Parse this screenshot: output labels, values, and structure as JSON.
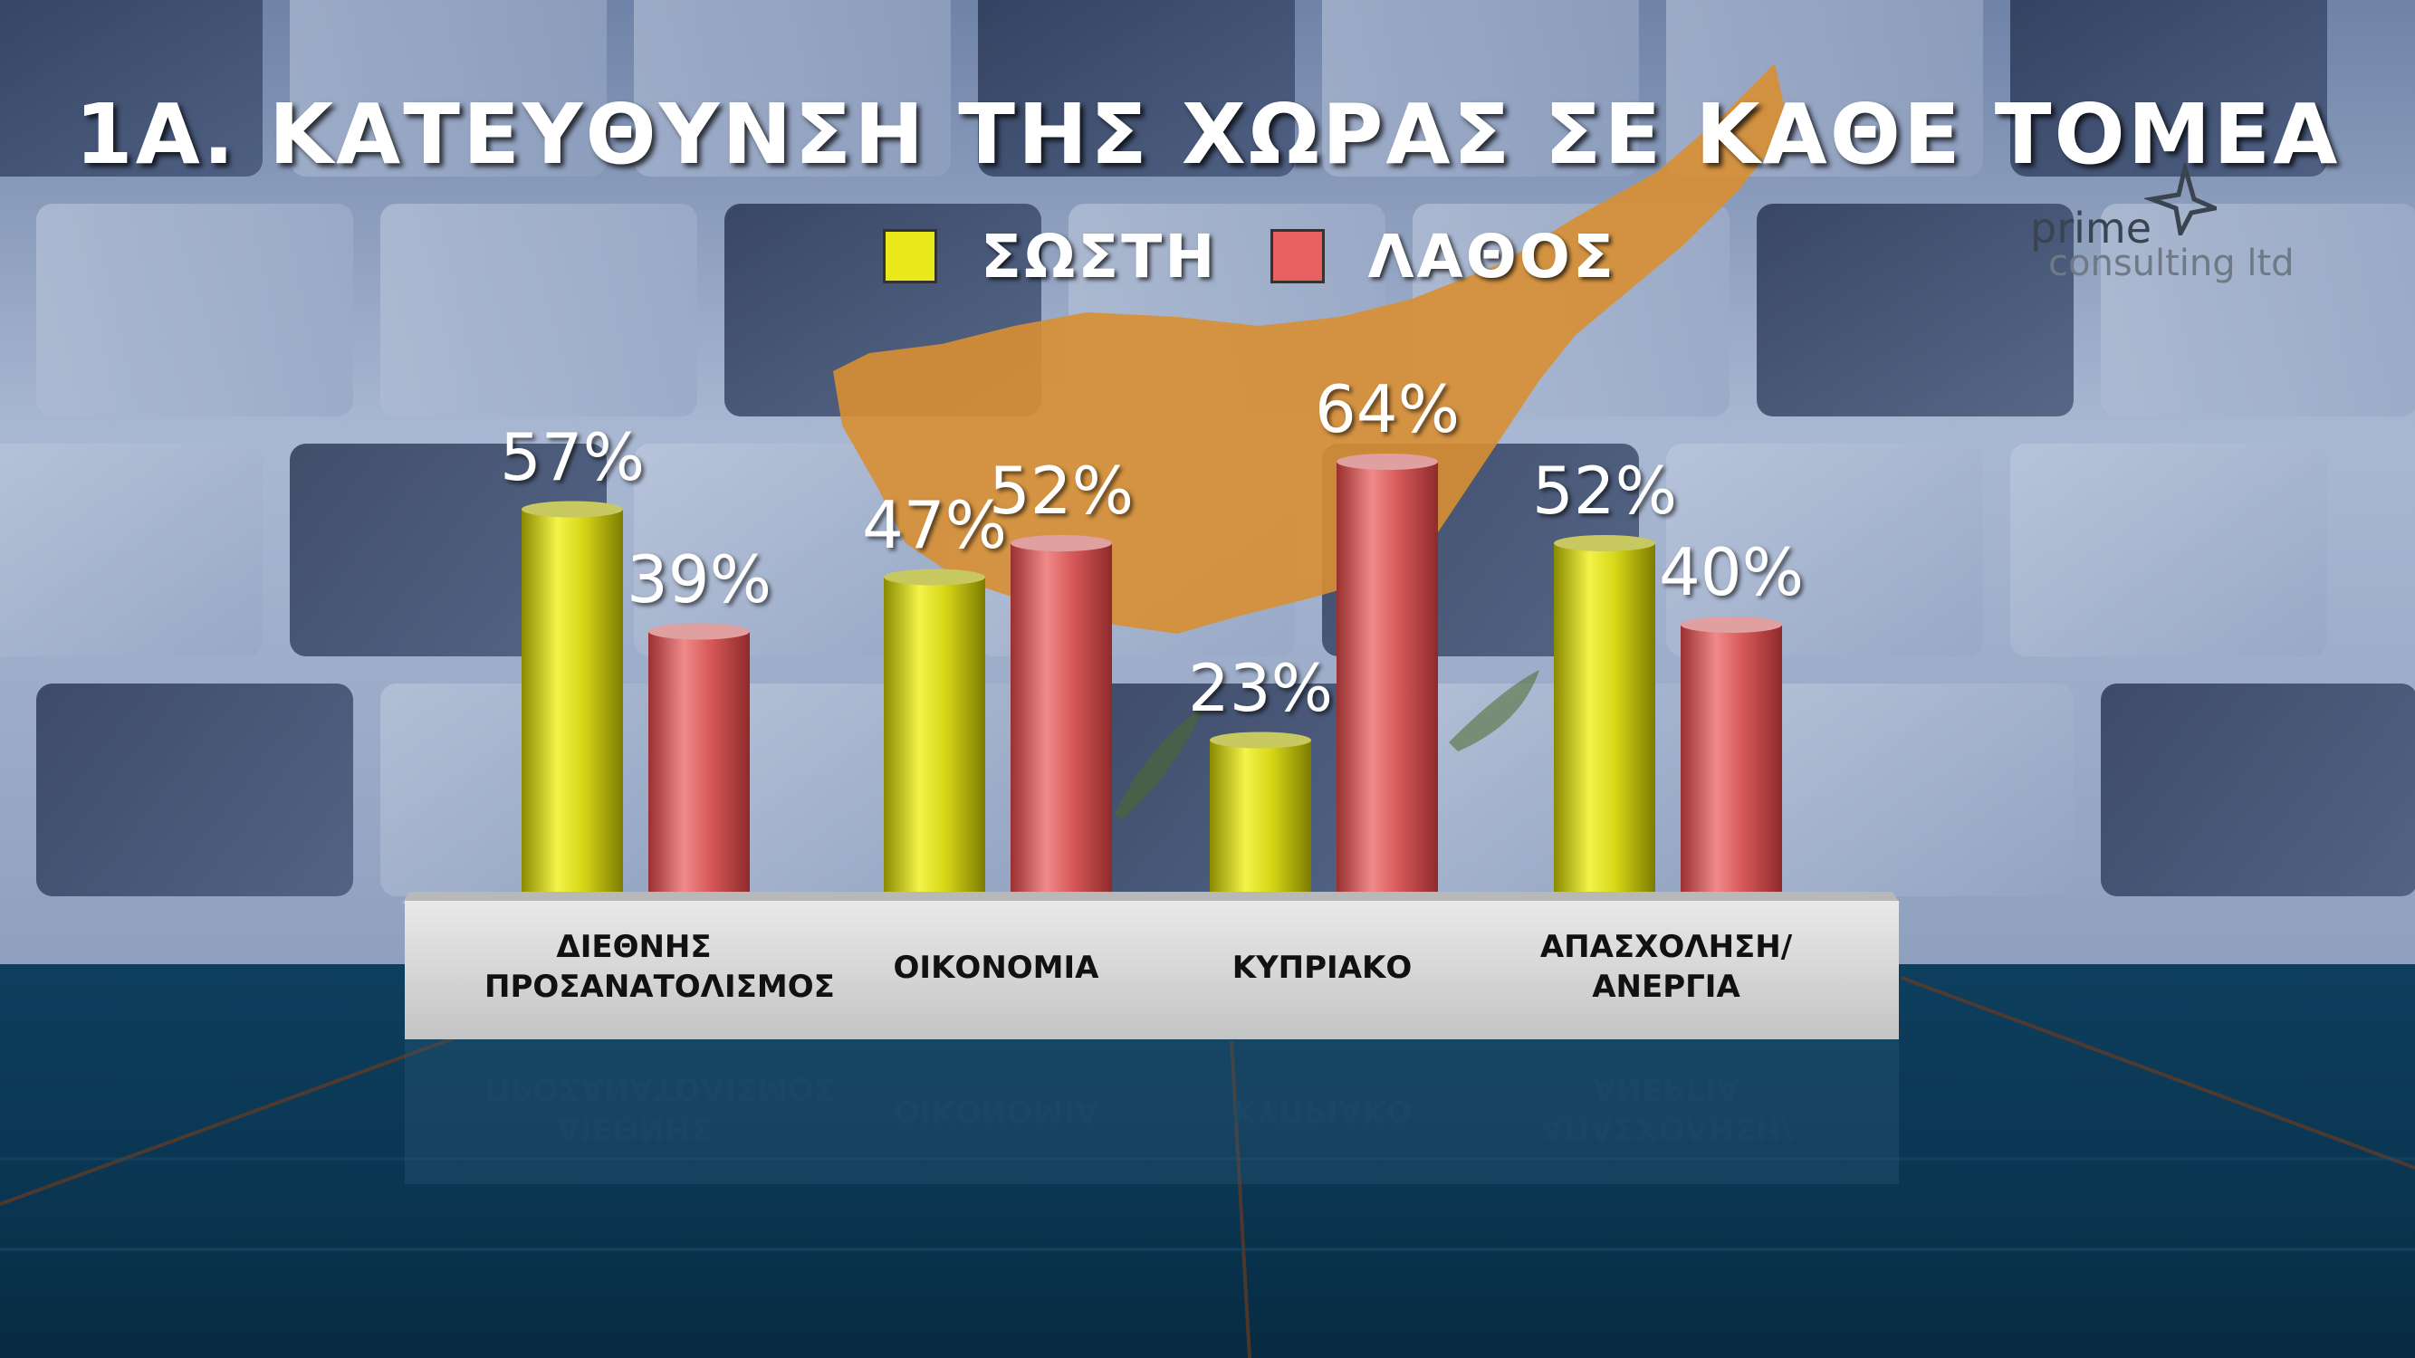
{
  "title": "1Α. ΚΑΤΕΥΘΥΝΣΗ ΤΗΣ ΧΩΡΑΣ ΣΕ ΚΑΘΕ ΤΟΜΕΑ",
  "legend": [
    {
      "label": "ΣΩΣΤΗ",
      "color": "#e8e81a"
    },
    {
      "label": "ΛΑΘΟΣ",
      "color": "#e86060"
    }
  ],
  "logo": {
    "line1": "prime",
    "line2": "consulting ltd",
    "icon": "star-compass-icon"
  },
  "colors": {
    "correct": "#e2e21c",
    "wrong": "#df5b5b",
    "base": "#d6d6d6"
  },
  "chart_data": {
    "type": "bar",
    "title": "1Α. ΚΑΤΕΥΘΥΝΣΗ ΤΗΣ ΧΩΡΑΣ ΣΕ ΚΑΘΕ ΤΟΜΕΑ",
    "categories": [
      [
        "ΔΙΕΘΝΗΣ",
        "ΠΡΟΣΑΝΑΤΟΛΙΣΜΟΣ"
      ],
      [
        "ΟΙΚΟΝΟΜΙΑ"
      ],
      [
        "ΚΥΠΡΙΑΚΟ"
      ],
      [
        "ΑΠΑΣΧΟΛΗΣΗ/",
        "ΑΝΕΡΓΙΑ"
      ]
    ],
    "series": [
      {
        "name": "ΣΩΣΤΗ",
        "values": [
          57,
          47,
          23,
          52
        ],
        "labels": [
          "57%",
          "47%",
          "23%",
          "52%"
        ]
      },
      {
        "name": "ΛΑΘΟΣ",
        "values": [
          39,
          52,
          64,
          40
        ],
        "labels": [
          "39%",
          "52%",
          "64%",
          "40%"
        ]
      }
    ],
    "unit": "%",
    "legend_position": "top-center",
    "grid": false
  }
}
